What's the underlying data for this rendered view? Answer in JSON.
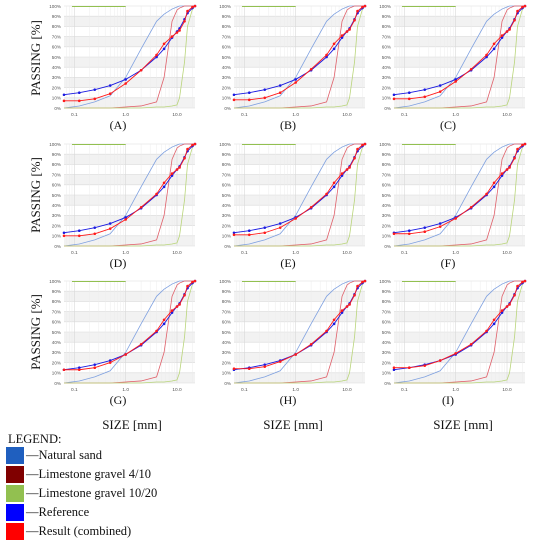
{
  "legend": {
    "title": "LEGEND:",
    "items": [
      {
        "label": "—Natural sand",
        "color": "#1f5fbf"
      },
      {
        "label": "—Limestone gravel 4/10",
        "color": "#800000"
      },
      {
        "label": "—Limestone gravel 10/20",
        "color": "#92c050"
      },
      {
        "label": "—Reference",
        "color": "#0000ff"
      },
      {
        "label": "—Result (combined)",
        "color": "#ff0000"
      }
    ]
  },
  "axes": {
    "ylabel": "PASSING [%]",
    "xlabel": "SIZE [mm]",
    "yticks": [
      "0%",
      "10%",
      "20%",
      "30%",
      "40%",
      "50%",
      "60%",
      "70%",
      "80%",
      "90%",
      "100%"
    ],
    "xticks": [
      {
        "v": 0.1,
        "label": "0.1"
      },
      {
        "v": 1,
        "label": "1.0"
      },
      {
        "v": 10,
        "label": "10.0"
      }
    ]
  },
  "colors": {
    "natural_sand_line": "#7fa1e0",
    "gravel_4_10_line": "#e0606a",
    "gravel_10_20_line": "#b9d57a",
    "reference": "#1a1ae0",
    "result": "#ff1a1a",
    "top_band": "#92c050",
    "grid": "#d9d9d9"
  },
  "chart_data": [
    {
      "type": "line",
      "panel": "(A)",
      "x_scale": "log",
      "xlim": [
        0.063,
        22.4
      ],
      "ylim": [
        0,
        100
      ],
      "x": [
        0.063,
        0.125,
        0.25,
        0.5,
        1,
        2,
        4,
        5.6,
        8,
        10,
        11.2,
        14,
        16,
        20,
        22.4
      ],
      "series": [
        {
          "name": "Natural sand",
          "values": [
            0,
            2,
            6,
            12,
            30,
            58,
            85,
            92,
            97,
            99,
            100,
            100,
            100,
            100,
            100
          ]
        },
        {
          "name": "Limestone gravel 4/10",
          "values": [
            0,
            0,
            0,
            0,
            1,
            2,
            6,
            30,
            85,
            96,
            98,
            100,
            100,
            100,
            100
          ]
        },
        {
          "name": "Limestone gravel 10/20",
          "values": [
            0,
            0,
            0,
            0,
            0,
            0,
            1,
            1,
            2,
            3,
            10,
            45,
            80,
            97,
            100
          ]
        },
        {
          "name": "Reference",
          "values": [
            13,
            15,
            18,
            22,
            28,
            37,
            50,
            58,
            69,
            75,
            78,
            87,
            93,
            98,
            100
          ]
        },
        {
          "name": "Result (combined)",
          "values": [
            7,
            7,
            9,
            14,
            24,
            37,
            52,
            63,
            70,
            74,
            76,
            85,
            95,
            99,
            100
          ]
        }
      ]
    },
    {
      "type": "line",
      "panel": "(B)",
      "x_scale": "log",
      "xlim": [
        0.063,
        22.4
      ],
      "ylim": [
        0,
        100
      ],
      "x": [
        0.063,
        0.125,
        0.25,
        0.5,
        1,
        2,
        4,
        5.6,
        8,
        10,
        11.2,
        14,
        16,
        20,
        22.4
      ],
      "series": [
        {
          "name": "Natural sand",
          "values": [
            0,
            2,
            6,
            12,
            30,
            58,
            85,
            92,
            97,
            99,
            100,
            100,
            100,
            100,
            100
          ]
        },
        {
          "name": "Limestone gravel 4/10",
          "values": [
            0,
            0,
            0,
            0,
            1,
            2,
            6,
            30,
            85,
            96,
            98,
            100,
            100,
            100,
            100
          ]
        },
        {
          "name": "Limestone gravel 10/20",
          "values": [
            0,
            0,
            0,
            0,
            0,
            0,
            1,
            1,
            2,
            3,
            10,
            45,
            80,
            97,
            100
          ]
        },
        {
          "name": "Reference",
          "values": [
            13,
            15,
            18,
            22,
            28,
            37,
            50,
            58,
            69,
            75,
            78,
            87,
            93,
            98,
            100
          ]
        },
        {
          "name": "Result (combined)",
          "values": [
            8,
            8,
            10,
            15,
            25,
            38,
            52,
            63,
            71,
            75,
            77,
            86,
            95,
            99,
            100
          ]
        }
      ]
    },
    {
      "type": "line",
      "panel": "(C)",
      "x_scale": "log",
      "xlim": [
        0.063,
        22.4
      ],
      "ylim": [
        0,
        100
      ],
      "x": [
        0.063,
        0.125,
        0.25,
        0.5,
        1,
        2,
        4,
        5.6,
        8,
        10,
        11.2,
        14,
        16,
        20,
        22.4
      ],
      "series": [
        {
          "name": "Natural sand",
          "values": [
            0,
            2,
            6,
            12,
            30,
            58,
            85,
            92,
            97,
            99,
            100,
            100,
            100,
            100,
            100
          ]
        },
        {
          "name": "Limestone gravel 4/10",
          "values": [
            0,
            0,
            0,
            0,
            1,
            2,
            6,
            30,
            85,
            96,
            98,
            100,
            100,
            100,
            100
          ]
        },
        {
          "name": "Limestone gravel 10/20",
          "values": [
            0,
            0,
            0,
            0,
            0,
            0,
            1,
            1,
            2,
            3,
            10,
            45,
            80,
            97,
            100
          ]
        },
        {
          "name": "Reference",
          "values": [
            13,
            15,
            18,
            22,
            28,
            37,
            50,
            58,
            69,
            75,
            78,
            87,
            93,
            98,
            100
          ]
        },
        {
          "name": "Result (combined)",
          "values": [
            9,
            9,
            11,
            16,
            26,
            38,
            52,
            63,
            71,
            75,
            77,
            86,
            95,
            99,
            100
          ]
        }
      ]
    },
    {
      "type": "line",
      "panel": "(D)",
      "x_scale": "log",
      "xlim": [
        0.063,
        22.4
      ],
      "ylim": [
        0,
        100
      ],
      "x": [
        0.063,
        0.125,
        0.25,
        0.5,
        1,
        2,
        4,
        5.6,
        8,
        10,
        11.2,
        14,
        16,
        20,
        22.4
      ],
      "series": [
        {
          "name": "Natural sand",
          "values": [
            0,
            2,
            6,
            12,
            30,
            58,
            85,
            92,
            97,
            99,
            100,
            100,
            100,
            100,
            100
          ]
        },
        {
          "name": "Limestone gravel 4/10",
          "values": [
            0,
            0,
            0,
            0,
            1,
            2,
            6,
            30,
            85,
            96,
            98,
            100,
            100,
            100,
            100
          ]
        },
        {
          "name": "Limestone gravel 10/20",
          "values": [
            0,
            0,
            0,
            0,
            0,
            0,
            1,
            1,
            2,
            3,
            10,
            45,
            80,
            97,
            100
          ]
        },
        {
          "name": "Reference",
          "values": [
            13,
            15,
            18,
            22,
            28,
            37,
            50,
            58,
            69,
            75,
            78,
            87,
            93,
            98,
            100
          ]
        },
        {
          "name": "Result (combined)",
          "values": [
            10,
            10,
            12,
            17,
            26,
            38,
            51,
            62,
            71,
            75,
            77,
            86,
            95,
            99,
            100
          ]
        }
      ]
    },
    {
      "type": "line",
      "panel": "(E)",
      "x_scale": "log",
      "xlim": [
        0.063,
        22.4
      ],
      "ylim": [
        0,
        100
      ],
      "x": [
        0.063,
        0.125,
        0.25,
        0.5,
        1,
        2,
        4,
        5.6,
        8,
        10,
        11.2,
        14,
        16,
        20,
        22.4
      ],
      "series": [
        {
          "name": "Natural sand",
          "values": [
            0,
            2,
            6,
            12,
            30,
            58,
            85,
            92,
            97,
            99,
            100,
            100,
            100,
            100,
            100
          ]
        },
        {
          "name": "Limestone gravel 4/10",
          "values": [
            0,
            0,
            0,
            0,
            1,
            2,
            6,
            30,
            85,
            96,
            98,
            100,
            100,
            100,
            100
          ]
        },
        {
          "name": "Limestone gravel 10/20",
          "values": [
            0,
            0,
            0,
            0,
            0,
            0,
            1,
            1,
            2,
            3,
            10,
            45,
            80,
            97,
            100
          ]
        },
        {
          "name": "Reference",
          "values": [
            13,
            15,
            18,
            22,
            28,
            37,
            50,
            58,
            69,
            75,
            78,
            87,
            93,
            98,
            100
          ]
        },
        {
          "name": "Result (combined)",
          "values": [
            11,
            11,
            13,
            18,
            27,
            38,
            51,
            62,
            71,
            75,
            77,
            86,
            95,
            99,
            100
          ]
        }
      ]
    },
    {
      "type": "line",
      "panel": "(F)",
      "x_scale": "log",
      "xlim": [
        0.063,
        22.4
      ],
      "ylim": [
        0,
        100
      ],
      "x": [
        0.063,
        0.125,
        0.25,
        0.5,
        1,
        2,
        4,
        5.6,
        8,
        10,
        11.2,
        14,
        16,
        20,
        22.4
      ],
      "series": [
        {
          "name": "Natural sand",
          "values": [
            0,
            2,
            6,
            12,
            30,
            58,
            85,
            92,
            97,
            99,
            100,
            100,
            100,
            100,
            100
          ]
        },
        {
          "name": "Limestone gravel 4/10",
          "values": [
            0,
            0,
            0,
            0,
            1,
            2,
            6,
            30,
            85,
            96,
            98,
            100,
            100,
            100,
            100
          ]
        },
        {
          "name": "Limestone gravel 10/20",
          "values": [
            0,
            0,
            0,
            0,
            0,
            0,
            1,
            1,
            2,
            3,
            10,
            45,
            80,
            97,
            100
          ]
        },
        {
          "name": "Reference",
          "values": [
            13,
            15,
            18,
            22,
            28,
            37,
            50,
            58,
            69,
            75,
            78,
            87,
            93,
            98,
            100
          ]
        },
        {
          "name": "Result (combined)",
          "values": [
            12,
            12,
            14,
            19,
            27,
            38,
            51,
            62,
            71,
            75,
            77,
            86,
            95,
            99,
            100
          ]
        }
      ]
    },
    {
      "type": "line",
      "panel": "(G)",
      "x_scale": "log",
      "xlim": [
        0.063,
        22.4
      ],
      "ylim": [
        0,
        100
      ],
      "x": [
        0.063,
        0.125,
        0.25,
        0.5,
        1,
        2,
        4,
        5.6,
        8,
        10,
        11.2,
        14,
        16,
        20,
        22.4
      ],
      "series": [
        {
          "name": "Natural sand",
          "values": [
            0,
            2,
            6,
            12,
            30,
            58,
            85,
            92,
            97,
            99,
            100,
            100,
            100,
            100,
            100
          ]
        },
        {
          "name": "Limestone gravel 4/10",
          "values": [
            0,
            0,
            0,
            0,
            1,
            2,
            6,
            30,
            85,
            96,
            98,
            100,
            100,
            100,
            100
          ]
        },
        {
          "name": "Limestone gravel 10/20",
          "values": [
            0,
            0,
            0,
            0,
            0,
            0,
            1,
            1,
            2,
            3,
            10,
            45,
            80,
            97,
            100
          ]
        },
        {
          "name": "Reference",
          "values": [
            13,
            15,
            18,
            22,
            28,
            37,
            50,
            58,
            69,
            75,
            78,
            87,
            93,
            98,
            100
          ]
        },
        {
          "name": "Result (combined)",
          "values": [
            13,
            13,
            15,
            20,
            28,
            38,
            51,
            62,
            71,
            75,
            77,
            86,
            95,
            99,
            100
          ]
        }
      ]
    },
    {
      "type": "line",
      "panel": "(H)",
      "x_scale": "log",
      "xlim": [
        0.063,
        22.4
      ],
      "ylim": [
        0,
        100
      ],
      "x": [
        0.063,
        0.125,
        0.25,
        0.5,
        1,
        2,
        4,
        5.6,
        8,
        10,
        11.2,
        14,
        16,
        20,
        22.4
      ],
      "series": [
        {
          "name": "Natural sand",
          "values": [
            0,
            2,
            6,
            12,
            30,
            58,
            85,
            92,
            97,
            99,
            100,
            100,
            100,
            100,
            100
          ]
        },
        {
          "name": "Limestone gravel 4/10",
          "values": [
            0,
            0,
            0,
            0,
            1,
            2,
            6,
            30,
            85,
            96,
            98,
            100,
            100,
            100,
            100
          ]
        },
        {
          "name": "Limestone gravel 10/20",
          "values": [
            0,
            0,
            0,
            0,
            0,
            0,
            1,
            1,
            2,
            3,
            10,
            45,
            80,
            97,
            100
          ]
        },
        {
          "name": "Reference",
          "values": [
            13,
            15,
            18,
            22,
            28,
            37,
            50,
            58,
            69,
            75,
            78,
            87,
            93,
            98,
            100
          ]
        },
        {
          "name": "Result (combined)",
          "values": [
            14,
            14,
            16,
            21,
            28,
            38,
            51,
            62,
            71,
            75,
            77,
            86,
            95,
            99,
            100
          ]
        }
      ]
    },
    {
      "type": "line",
      "panel": "(I)",
      "x_scale": "log",
      "xlim": [
        0.063,
        22.4
      ],
      "ylim": [
        0,
        100
      ],
      "x": [
        0.063,
        0.125,
        0.25,
        0.5,
        1,
        2,
        4,
        5.6,
        8,
        10,
        11.2,
        14,
        16,
        20,
        22.4
      ],
      "series": [
        {
          "name": "Natural sand",
          "values": [
            0,
            2,
            6,
            12,
            30,
            58,
            85,
            92,
            97,
            99,
            100,
            100,
            100,
            100,
            100
          ]
        },
        {
          "name": "Limestone gravel 4/10",
          "values": [
            0,
            0,
            0,
            0,
            1,
            2,
            6,
            30,
            85,
            96,
            98,
            100,
            100,
            100,
            100
          ]
        },
        {
          "name": "Limestone gravel 10/20",
          "values": [
            0,
            0,
            0,
            0,
            0,
            0,
            1,
            1,
            2,
            3,
            10,
            45,
            80,
            97,
            100
          ]
        },
        {
          "name": "Reference",
          "values": [
            13,
            15,
            18,
            22,
            28,
            37,
            50,
            58,
            69,
            75,
            78,
            87,
            93,
            98,
            100
          ]
        },
        {
          "name": "Result (combined)",
          "values": [
            15,
            15,
            17,
            22,
            29,
            38,
            51,
            62,
            71,
            75,
            77,
            86,
            95,
            99,
            100
          ]
        }
      ]
    }
  ]
}
